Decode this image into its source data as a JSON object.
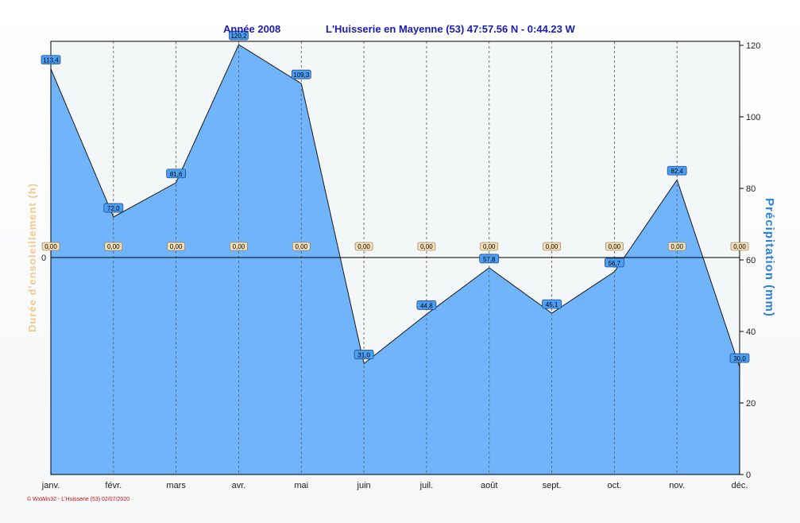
{
  "chart_data": {
    "type": "area",
    "title_left": "Année  2008",
    "title_right": "L'Huisserie en Mayenne (53) 47:57.56 N - 0:44.23 W",
    "categories": [
      "janv.",
      "févr.",
      "mars",
      "avr.",
      "mai",
      "juin",
      "juil.",
      "août",
      "sept.",
      "oct.",
      "nov.",
      "déc."
    ],
    "series": [
      {
        "axis": "right",
        "color": "#70b4fb",
        "values": [
          113.4,
          72.0,
          81.6,
          120.2,
          109.3,
          31.0,
          44.8,
          57.8,
          45.1,
          56.7,
          82.4,
          30.0
        ],
        "value_labels": [
          "113,4",
          "72,0",
          "81,6",
          "120,2",
          "109,3",
          "31,0",
          "44,8",
          "57,8",
          "45,1",
          "56,7",
          "82,4",
          "30,0"
        ]
      },
      {
        "axis": "left",
        "color": "#f5deb3",
        "values": [
          0,
          0,
          0,
          0,
          0,
          0,
          0,
          0,
          0,
          0,
          0,
          0
        ],
        "value_labels": [
          "0,00",
          "0,00",
          "0,00",
          "0,00",
          "0,00",
          "0,00",
          "0,00",
          "0,00",
          "0,00",
          "0,00",
          "0,00",
          "0,00"
        ]
      }
    ],
    "right_axis": {
      "label": "Précipitation  (mm)",
      "ylim": [
        0,
        120
      ],
      "ticks": [
        "0",
        "20",
        "40",
        "60",
        "80",
        "100",
        "120"
      ],
      "color": "#2a7fd6"
    },
    "left_axis": {
      "label": "Durée d'ensoleillement  (h)",
      "ticks": [
        "0"
      ],
      "color": "#f2c98a"
    },
    "grid": "vertical dashed",
    "footer": "© WxWin32  -  L'Huisserie (53)  02/07/2020"
  }
}
